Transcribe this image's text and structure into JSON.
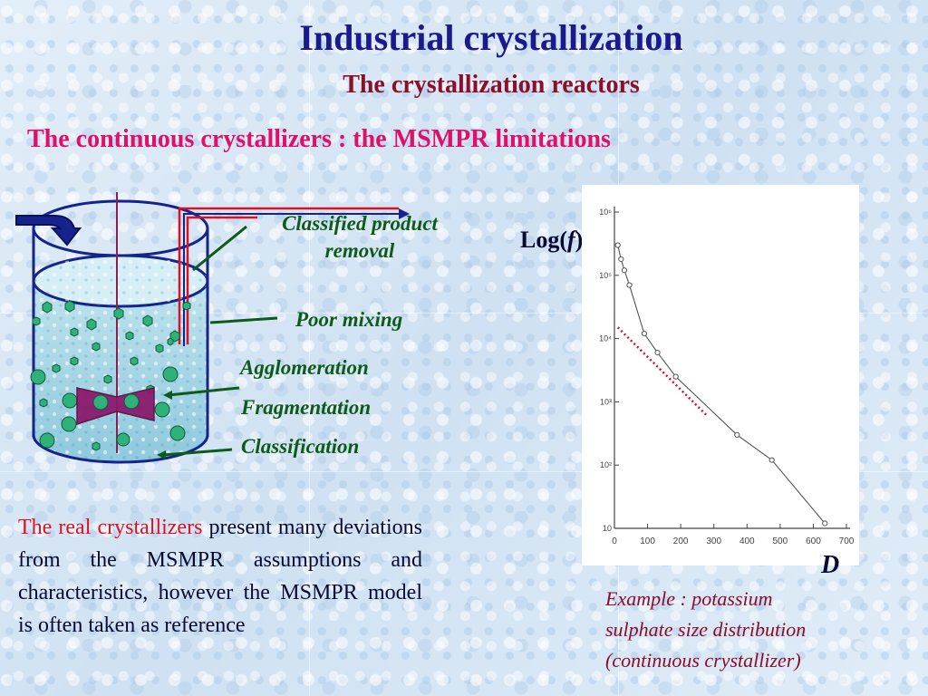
{
  "title": "Industrial crystallization",
  "subtitle": "The crystallization reactors",
  "heading": "The continuous crystallizers : the MSMPR limitations",
  "diagram": {
    "labels": {
      "classified_product_line1": "Classified product",
      "classified_product_line2": "removal",
      "poor_mixing": "Poor mixing",
      "agglomeration": "Agglomeration",
      "fragmentation": "Fragmentation",
      "classification": "Classification"
    }
  },
  "body": {
    "highlight": "The real crystallizers",
    "rest": " present many deviations from the MSMPR assumptions and characteristics, however the MSMPR model is often taken as reference"
  },
  "plot": {
    "y_axis_label_pre": "Log(",
    "y_axis_label_var": "f",
    "y_axis_label_post": ")",
    "x_axis_label": "D"
  },
  "caption": {
    "line1": "Example : potassium",
    "line2": "sulphate size distribution",
    "line3": "(continuous crystallizer)"
  },
  "chart_data": {
    "type": "scatter",
    "title": "",
    "xlabel": "D",
    "ylabel": "Log(f)",
    "y_scale": "log",
    "xlim": [
      0,
      700
    ],
    "ylim": [
      10,
      1000000
    ],
    "x_ticks": [
      "0",
      "100",
      "200",
      "300",
      "400",
      "500",
      "600",
      "700"
    ],
    "y_ticks": [
      "10",
      "10²",
      "10³",
      "10⁴",
      "10⁵",
      "10⁶"
    ],
    "series": [
      {
        "marker": "open-circle",
        "color": "#555555",
        "points": [
          [
            10,
            300000
          ],
          [
            20,
            180000
          ],
          [
            30,
            120000
          ],
          [
            45,
            70000
          ],
          [
            90,
            12000
          ],
          [
            130,
            6000
          ],
          [
            185,
            2500
          ],
          [
            370,
            300
          ],
          [
            475,
            120
          ],
          [
            635,
            12
          ]
        ]
      },
      {
        "style": "dotted",
        "color": "#e01020",
        "points": [
          [
            10,
            15000
          ],
          [
            280,
            600
          ]
        ]
      }
    ],
    "grid": false
  }
}
